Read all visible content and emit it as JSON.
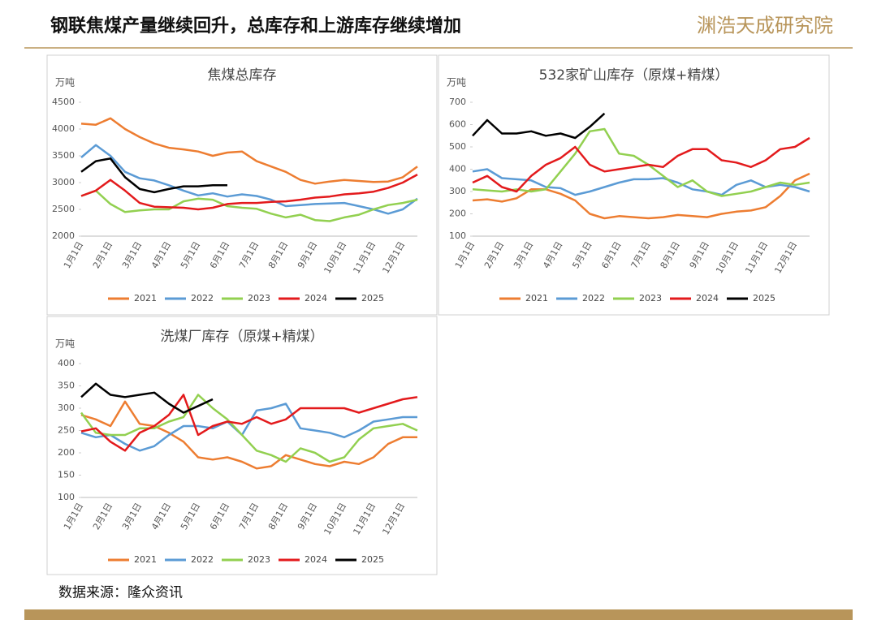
{
  "header": {
    "title": "钢联焦煤产量继续回升，总库存和上游库存继续增加",
    "logo": "渊浩天成研究院"
  },
  "source": "数据来源：隆众资讯",
  "chart_data": [
    {
      "type": "line",
      "title": "焦煤总库存",
      "y_label": "万吨",
      "categories": [
        "1月1日",
        null,
        "2月1日",
        null,
        "3月1日",
        null,
        "4月1日",
        null,
        "5月1日",
        null,
        "6月1日",
        null,
        "7月1日",
        null,
        "8月1日",
        null,
        "9月1日",
        null,
        "10月1日",
        null,
        "11月1日",
        null,
        "12月1日",
        null
      ],
      "ylim": [
        2000,
        4500
      ],
      "yticks": [
        2000,
        2500,
        3000,
        3500,
        4000,
        4500
      ],
      "series": [
        {
          "name": "2021",
          "color": "#ED7D31",
          "values": [
            4100,
            4080,
            4200,
            4000,
            3850,
            3730,
            3650,
            3620,
            3580,
            3500,
            3560,
            3580,
            3400,
            3300,
            3200,
            3050,
            2980,
            3020,
            3050,
            3030,
            3010,
            3020,
            3100,
            3300
          ]
        },
        {
          "name": "2022",
          "color": "#5B9BD5",
          "values": [
            3470,
            3700,
            3500,
            3200,
            3080,
            3040,
            2950,
            2850,
            2760,
            2800,
            2740,
            2780,
            2750,
            2680,
            2560,
            2580,
            2600,
            2610,
            2620,
            2560,
            2500,
            2420,
            2500,
            2700
          ]
        },
        {
          "name": "2023",
          "color": "#92D050",
          "values": [
            2750,
            2850,
            2600,
            2450,
            2480,
            2500,
            2500,
            2650,
            2700,
            2680,
            2560,
            2530,
            2510,
            2420,
            2350,
            2400,
            2300,
            2280,
            2350,
            2400,
            2500,
            2580,
            2620,
            2680
          ]
        },
        {
          "name": "2024",
          "color": "#E31A1C",
          "values": [
            2750,
            2850,
            3050,
            2850,
            2620,
            2550,
            2540,
            2530,
            2500,
            2530,
            2600,
            2620,
            2620,
            2640,
            2650,
            2680,
            2720,
            2740,
            2780,
            2800,
            2830,
            2900,
            3000,
            3150
          ]
        },
        {
          "name": "2025",
          "color": "#000000",
          "values": [
            3200,
            3400,
            3450,
            3100,
            2880,
            2820,
            2880,
            2930,
            2930,
            2950,
            2950,
            null,
            null,
            null,
            null,
            null,
            null,
            null,
            null,
            null,
            null,
            null,
            null,
            null
          ]
        }
      ]
    },
    {
      "type": "line",
      "title": "532家矿山库存（原煤+精煤）",
      "y_label": "万吨",
      "categories": [
        "1月1日",
        null,
        "2月1日",
        null,
        "3月1日",
        null,
        "4月1日",
        null,
        "5月1日",
        null,
        "6月1日",
        null,
        "7月1日",
        null,
        "8月1日",
        null,
        "9月1日",
        null,
        "10月1日",
        null,
        "11月1日",
        null,
        "12月1日",
        null
      ],
      "ylim": [
        100,
        700
      ],
      "yticks": [
        100,
        200,
        300,
        400,
        500,
        600,
        700
      ],
      "series": [
        {
          "name": "2021",
          "color": "#ED7D31",
          "values": [
            260,
            265,
            255,
            270,
            310,
            310,
            290,
            260,
            200,
            180,
            190,
            185,
            180,
            185,
            195,
            190,
            185,
            200,
            210,
            215,
            230,
            280,
            350,
            380
          ]
        },
        {
          "name": "2022",
          "color": "#5B9BD5",
          "values": [
            390,
            400,
            360,
            355,
            350,
            320,
            315,
            285,
            300,
            320,
            340,
            355,
            355,
            360,
            340,
            310,
            300,
            285,
            330,
            350,
            320,
            330,
            320,
            300
          ]
        },
        {
          "name": "2023",
          "color": "#92D050",
          "values": [
            310,
            305,
            300,
            310,
            300,
            310,
            390,
            470,
            570,
            580,
            470,
            460,
            420,
            370,
            320,
            350,
            300,
            280,
            290,
            300,
            320,
            340,
            330,
            340
          ]
        },
        {
          "name": "2024",
          "color": "#E31A1C",
          "values": [
            340,
            370,
            320,
            300,
            370,
            420,
            450,
            500,
            420,
            390,
            400,
            410,
            420,
            410,
            460,
            490,
            490,
            440,
            430,
            410,
            440,
            490,
            500,
            540
          ]
        },
        {
          "name": "2025",
          "color": "#000000",
          "values": [
            550,
            620,
            560,
            560,
            570,
            550,
            560,
            540,
            590,
            650,
            null,
            null,
            null,
            null,
            null,
            null,
            null,
            null,
            null,
            null,
            null,
            null,
            null,
            null
          ]
        }
      ]
    },
    {
      "type": "line",
      "title": "洗煤厂库存（原煤+精煤）",
      "y_label": "万吨",
      "categories": [
        "1月1日",
        null,
        "2月1日",
        null,
        "3月1日",
        null,
        "4月1日",
        null,
        "5月1日",
        null,
        "6月1日",
        null,
        "7月1日",
        null,
        "8月1日",
        null,
        "9月1日",
        null,
        "10月1日",
        null,
        "11月1日",
        null,
        "12月1日",
        null
      ],
      "ylim": [
        100,
        400
      ],
      "yticks": [
        100,
        150,
        200,
        250,
        300,
        350,
        400
      ],
      "series": [
        {
          "name": "2021",
          "color": "#ED7D31",
          "values": [
            285,
            275,
            260,
            315,
            265,
            260,
            245,
            225,
            190,
            185,
            190,
            180,
            165,
            170,
            195,
            185,
            175,
            170,
            180,
            175,
            190,
            220,
            235,
            235
          ]
        },
        {
          "name": "2022",
          "color": "#5B9BD5",
          "values": [
            245,
            235,
            240,
            220,
            205,
            215,
            240,
            260,
            260,
            255,
            270,
            240,
            295,
            300,
            310,
            255,
            250,
            245,
            235,
            250,
            270,
            275,
            280,
            280
          ]
        },
        {
          "name": "2023",
          "color": "#92D050",
          "values": [
            290,
            245,
            240,
            240,
            255,
            255,
            270,
            280,
            330,
            300,
            275,
            240,
            205,
            195,
            180,
            210,
            200,
            180,
            190,
            230,
            255,
            260,
            265,
            250
          ]
        },
        {
          "name": "2024",
          "color": "#E31A1C",
          "values": [
            248,
            255,
            225,
            205,
            245,
            260,
            285,
            330,
            240,
            260,
            270,
            265,
            280,
            265,
            275,
            300,
            300,
            300,
            300,
            290,
            300,
            310,
            320,
            325
          ]
        },
        {
          "name": "2025",
          "color": "#000000",
          "values": [
            325,
            355,
            330,
            325,
            330,
            335,
            310,
            290,
            305,
            320,
            null,
            null,
            null,
            null,
            null,
            null,
            null,
            null,
            null,
            null,
            null,
            null,
            null,
            null
          ]
        }
      ]
    }
  ]
}
